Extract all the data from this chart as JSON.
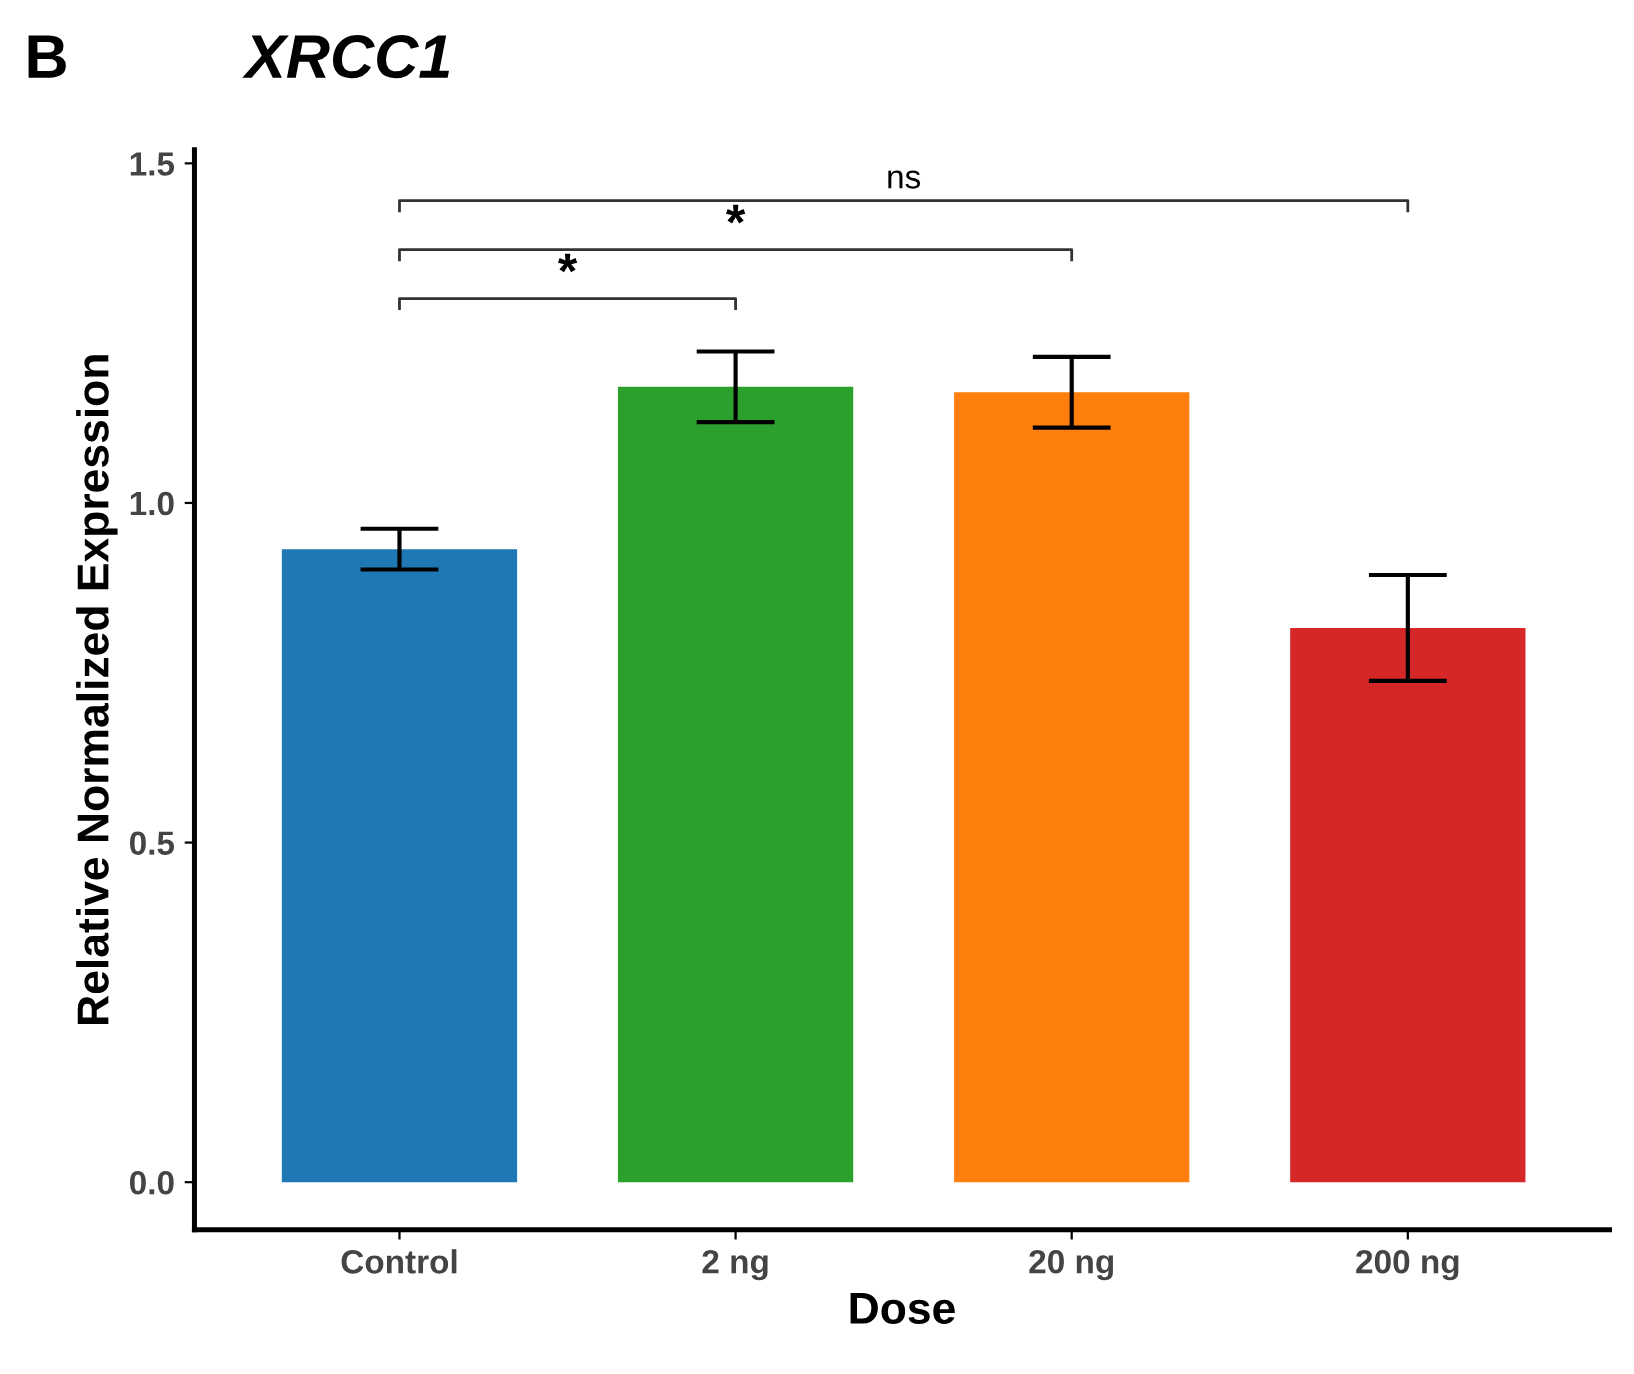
{
  "chart_data": {
    "type": "bar",
    "title": "XRCC1",
    "xlabel": "Dose",
    "ylabel": "Relative Normalized Expression",
    "categories": [
      "Control",
      "2 ng",
      "20 ng",
      "200 ng"
    ],
    "values": [
      0.932,
      1.171,
      1.163,
      0.816
    ],
    "errors": [
      0.03,
      0.052,
      0.052,
      0.078
    ],
    "colors": [
      "#1f77b4",
      "#2ca02c",
      "#ff7f0e",
      "#d62728"
    ],
    "ylim": [
      -0.07,
      1.52
    ],
    "yticks": [
      {
        "value": 0,
        "label": "0.0"
      },
      {
        "value": 0.5,
        "label": "0.5"
      },
      {
        "value": 1.0,
        "label": "1.0"
      },
      {
        "value": 1.5,
        "label": "1.5"
      }
    ],
    "annotations": [
      "B",
      "*",
      "*",
      "ns"
    ]
  }
}
